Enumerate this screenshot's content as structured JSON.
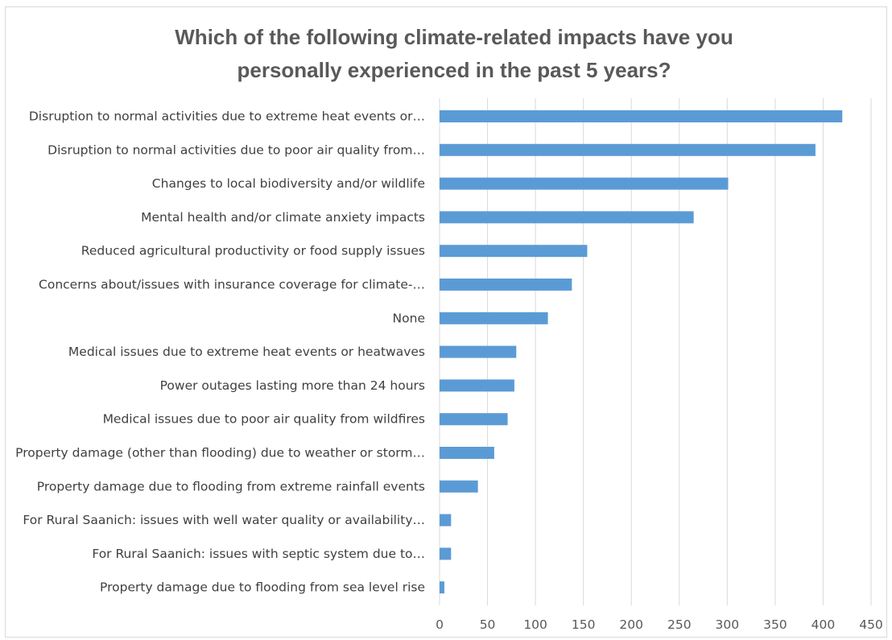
{
  "chart_data": {
    "type": "bar",
    "orientation": "horizontal",
    "title": "Which of the following climate-related impacts have you personally experienced in the past 5 years?",
    "title_lines": [
      "Which of the following climate-related impacts have you",
      "personally experienced in the past 5 years?"
    ],
    "categories": [
      "Disruption to normal activities due to extreme heat events or…",
      "Disruption to normal activities due to poor air quality from…",
      "Changes to local biodiversity and/or wildlife",
      "Mental health and/or climate anxiety impacts",
      "Reduced agricultural productivity or food supply issues",
      "Concerns about/issues with insurance coverage for climate-…",
      "None",
      "Medical issues due to extreme heat events or heatwaves",
      "Power outages lasting more than 24 hours",
      "Medical issues due to poor air quality from wildfires",
      "Property damage (other than flooding) due to weather or storm…",
      "Property damage due to flooding from extreme rainfall events",
      "For Rural Saanich: issues with well water quality or availability…",
      "For Rural Saanich: issues with septic system due to…",
      "Property damage due to flooding from sea level rise"
    ],
    "values": [
      420,
      392,
      301,
      265,
      154,
      138,
      113,
      80,
      78,
      71,
      57,
      40,
      12,
      12,
      5
    ],
    "xlim": [
      0,
      450
    ],
    "ticks": [
      0,
      50,
      100,
      150,
      200,
      250,
      300,
      350,
      400,
      450
    ],
    "tick_labels": [
      "0",
      "50",
      "100",
      "150",
      "200",
      "250",
      "300",
      "350",
      "400",
      "450"
    ],
    "xlabel": "",
    "ylabel": "",
    "grid": "vertical",
    "legend": "none",
    "bar_color": "#5b9bd5",
    "grid_color": "#d9d9d9"
  }
}
